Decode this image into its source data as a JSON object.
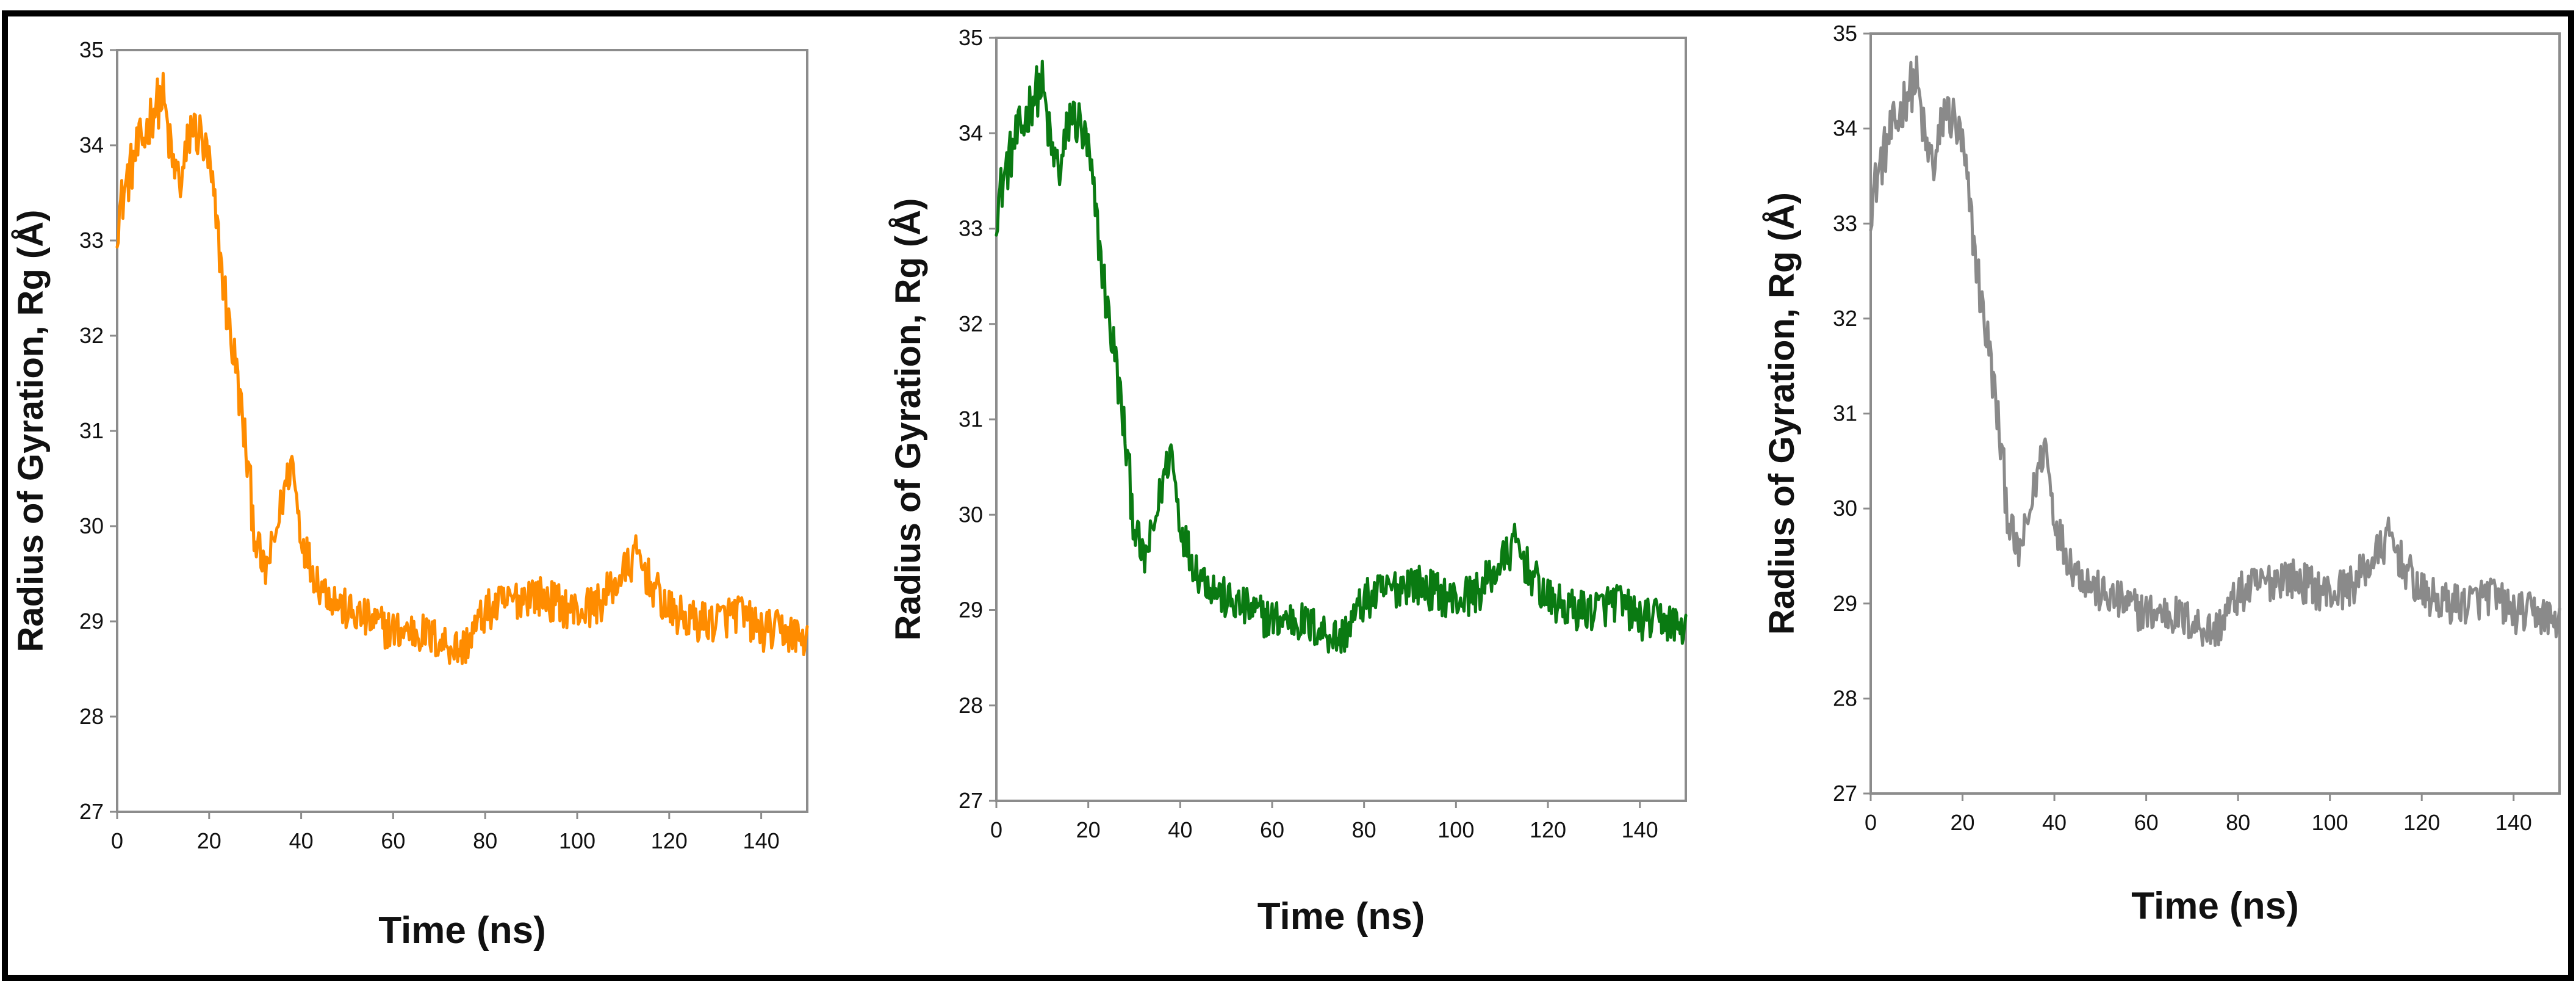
{
  "chart_data": [
    {
      "type": "line",
      "panel": "left",
      "xlabel": "Time (ns)",
      "ylabel": "Radius of Gyration, Rg (Å)",
      "xlim": [
        0,
        150
      ],
      "ylim": [
        27,
        35
      ],
      "xticks": [
        0,
        20,
        40,
        60,
        80,
        100,
        120,
        140
      ],
      "yticks": [
        27,
        28,
        29,
        30,
        31,
        32,
        33,
        34,
        35
      ],
      "color": "#ff8c00",
      "series": [
        {
          "name": "Rg",
          "x": [
            0,
            2,
            4,
            6,
            8,
            10,
            12,
            14,
            16,
            18,
            20,
            22,
            24,
            26,
            28,
            30,
            32,
            34,
            36,
            38,
            40,
            42,
            44,
            46,
            48,
            50,
            55,
            60,
            65,
            70,
            75,
            80,
            85,
            90,
            95,
            100,
            105,
            110,
            113,
            116,
            120,
            125,
            130,
            135,
            140,
            145,
            150
          ],
          "values": [
            33.2,
            33.6,
            33.9,
            34.1,
            34.4,
            34.5,
            33.8,
            33.6,
            34.2,
            34.1,
            33.8,
            33.0,
            32.2,
            31.6,
            30.8,
            29.9,
            29.5,
            29.8,
            30.3,
            30.7,
            29.9,
            29.6,
            29.4,
            29.3,
            29.2,
            29.1,
            29.0,
            28.9,
            28.9,
            28.8,
            28.7,
            29.1,
            29.2,
            29.3,
            29.2,
            29.1,
            29.2,
            29.5,
            29.7,
            29.4,
            29.1,
            29.0,
            29.0,
            29.1,
            28.9,
            28.9,
            28.8
          ]
        }
      ]
    },
    {
      "type": "line",
      "panel": "middle",
      "xlabel": "Time (ns)",
      "ylabel": "Radius of Gyration, Rg (Å)",
      "xlim": [
        0,
        150
      ],
      "ylim": [
        27,
        35
      ],
      "xticks": [
        0,
        20,
        40,
        60,
        80,
        100,
        120,
        140
      ],
      "yticks": [
        27,
        28,
        29,
        30,
        31,
        32,
        33,
        34,
        35
      ],
      "color": "#0a7a12",
      "series": [
        {
          "name": "Rg",
          "x": [
            0,
            2,
            4,
            6,
            8,
            10,
            12,
            14,
            16,
            18,
            20,
            22,
            24,
            26,
            28,
            30,
            32,
            34,
            36,
            38,
            40,
            42,
            44,
            46,
            48,
            50,
            55,
            60,
            65,
            70,
            75,
            80,
            85,
            90,
            95,
            100,
            105,
            110,
            113,
            116,
            120,
            125,
            130,
            135,
            140,
            145,
            150
          ],
          "values": [
            33.2,
            33.6,
            33.9,
            34.1,
            34.4,
            34.5,
            33.8,
            33.6,
            34.2,
            34.1,
            33.8,
            33.0,
            32.2,
            31.6,
            30.8,
            29.9,
            29.5,
            29.8,
            30.3,
            30.7,
            29.9,
            29.6,
            29.4,
            29.3,
            29.2,
            29.1,
            29.0,
            28.9,
            28.9,
            28.8,
            28.7,
            29.1,
            29.2,
            29.3,
            29.2,
            29.1,
            29.2,
            29.5,
            29.7,
            29.4,
            29.1,
            29.0,
            29.0,
            29.1,
            28.9,
            28.9,
            28.8
          ]
        }
      ]
    },
    {
      "type": "line",
      "panel": "right",
      "xlabel": "Time (ns)",
      "ylabel": "Radius of Gyration, Rg (Å)",
      "xlim": [
        0,
        150
      ],
      "ylim": [
        27,
        35
      ],
      "xticks": [
        0,
        20,
        40,
        60,
        80,
        100,
        120,
        140
      ],
      "yticks": [
        27,
        28,
        29,
        30,
        31,
        32,
        33,
        34,
        35
      ],
      "color": "#8a8a8a",
      "series": [
        {
          "name": "Rg",
          "x": [
            0,
            2,
            4,
            6,
            8,
            10,
            12,
            14,
            16,
            18,
            20,
            22,
            24,
            26,
            28,
            30,
            32,
            34,
            36,
            38,
            40,
            42,
            44,
            46,
            48,
            50,
            55,
            60,
            65,
            70,
            75,
            80,
            85,
            90,
            95,
            100,
            105,
            110,
            113,
            116,
            120,
            125,
            130,
            135,
            140,
            145,
            150
          ],
          "values": [
            33.2,
            33.6,
            33.9,
            34.1,
            34.4,
            34.5,
            33.8,
            33.6,
            34.2,
            34.1,
            33.8,
            33.0,
            32.2,
            31.6,
            30.8,
            29.9,
            29.5,
            29.8,
            30.3,
            30.7,
            29.9,
            29.6,
            29.4,
            29.3,
            29.2,
            29.1,
            29.0,
            28.9,
            28.9,
            28.8,
            28.7,
            29.1,
            29.2,
            29.3,
            29.2,
            29.1,
            29.2,
            29.5,
            29.7,
            29.4,
            29.1,
            29.0,
            29.0,
            29.1,
            28.9,
            28.9,
            28.8
          ]
        }
      ]
    }
  ]
}
